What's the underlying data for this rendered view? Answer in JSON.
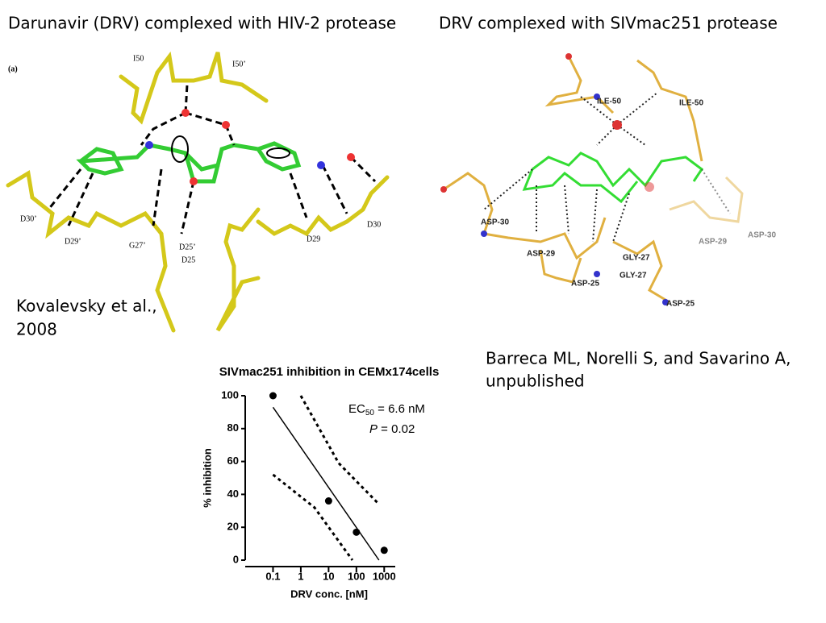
{
  "left_title": "Darunavir (DRV) complexed with HIV-2 protease",
  "right_title": "DRV complexed with SIVmac251 protease",
  "left_citation": [
    "Kovalevsky et al.,",
    "2008"
  ],
  "right_citation": [
    "Barreca ML, Norelli S, and Savarino A,",
    "unpublished"
  ],
  "panel_a_labels": [
    "(a)",
    "I50",
    "I50’",
    "D30’",
    "D29’",
    "G27’",
    "D25’",
    "D25",
    "D29",
    "D30"
  ],
  "panel_b_labels": [
    "ILE-50",
    "ILE-50",
    "ASP-30",
    "ASP-29",
    "ASP-25",
    "GLY-27",
    "GLY-27",
    "ASP-25",
    "ASP-29",
    "ASP-30"
  ],
  "chart_data": {
    "type": "scatter",
    "title": "SIVmac251 inhibition in CEMx174cells",
    "xlabel": "DRV conc. [nM]",
    "ylabel": "% inhibition",
    "x": [
      0.1,
      10,
      100,
      1000
    ],
    "values": [
      100,
      36,
      17,
      6
    ],
    "color": "#000000",
    "xscale": "log",
    "xlim": [
      0.01,
      2500
    ],
    "ylim": [
      0,
      100
    ],
    "xticks": [
      0.1,
      1,
      10,
      100,
      1000
    ],
    "yticks": [
      0,
      20,
      40,
      60,
      80,
      100
    ],
    "lines": [
      {
        "style": "solid",
        "x": [
          0.1,
          650
        ],
        "values": [
          93,
          0
        ]
      },
      {
        "style": "dotted",
        "x": [
          1,
          23,
          650
        ],
        "values": [
          100,
          59,
          34
        ]
      },
      {
        "style": "dotted",
        "x": [
          0.1,
          3.1,
          72
        ],
        "values": [
          52,
          32,
          0
        ]
      }
    ],
    "annotations": {
      "ec": "EC",
      "ec_sub": "50",
      "ec_rest": " = 6.6 nM",
      "p": "P",
      "p_rest": " = 0.02"
    }
  }
}
